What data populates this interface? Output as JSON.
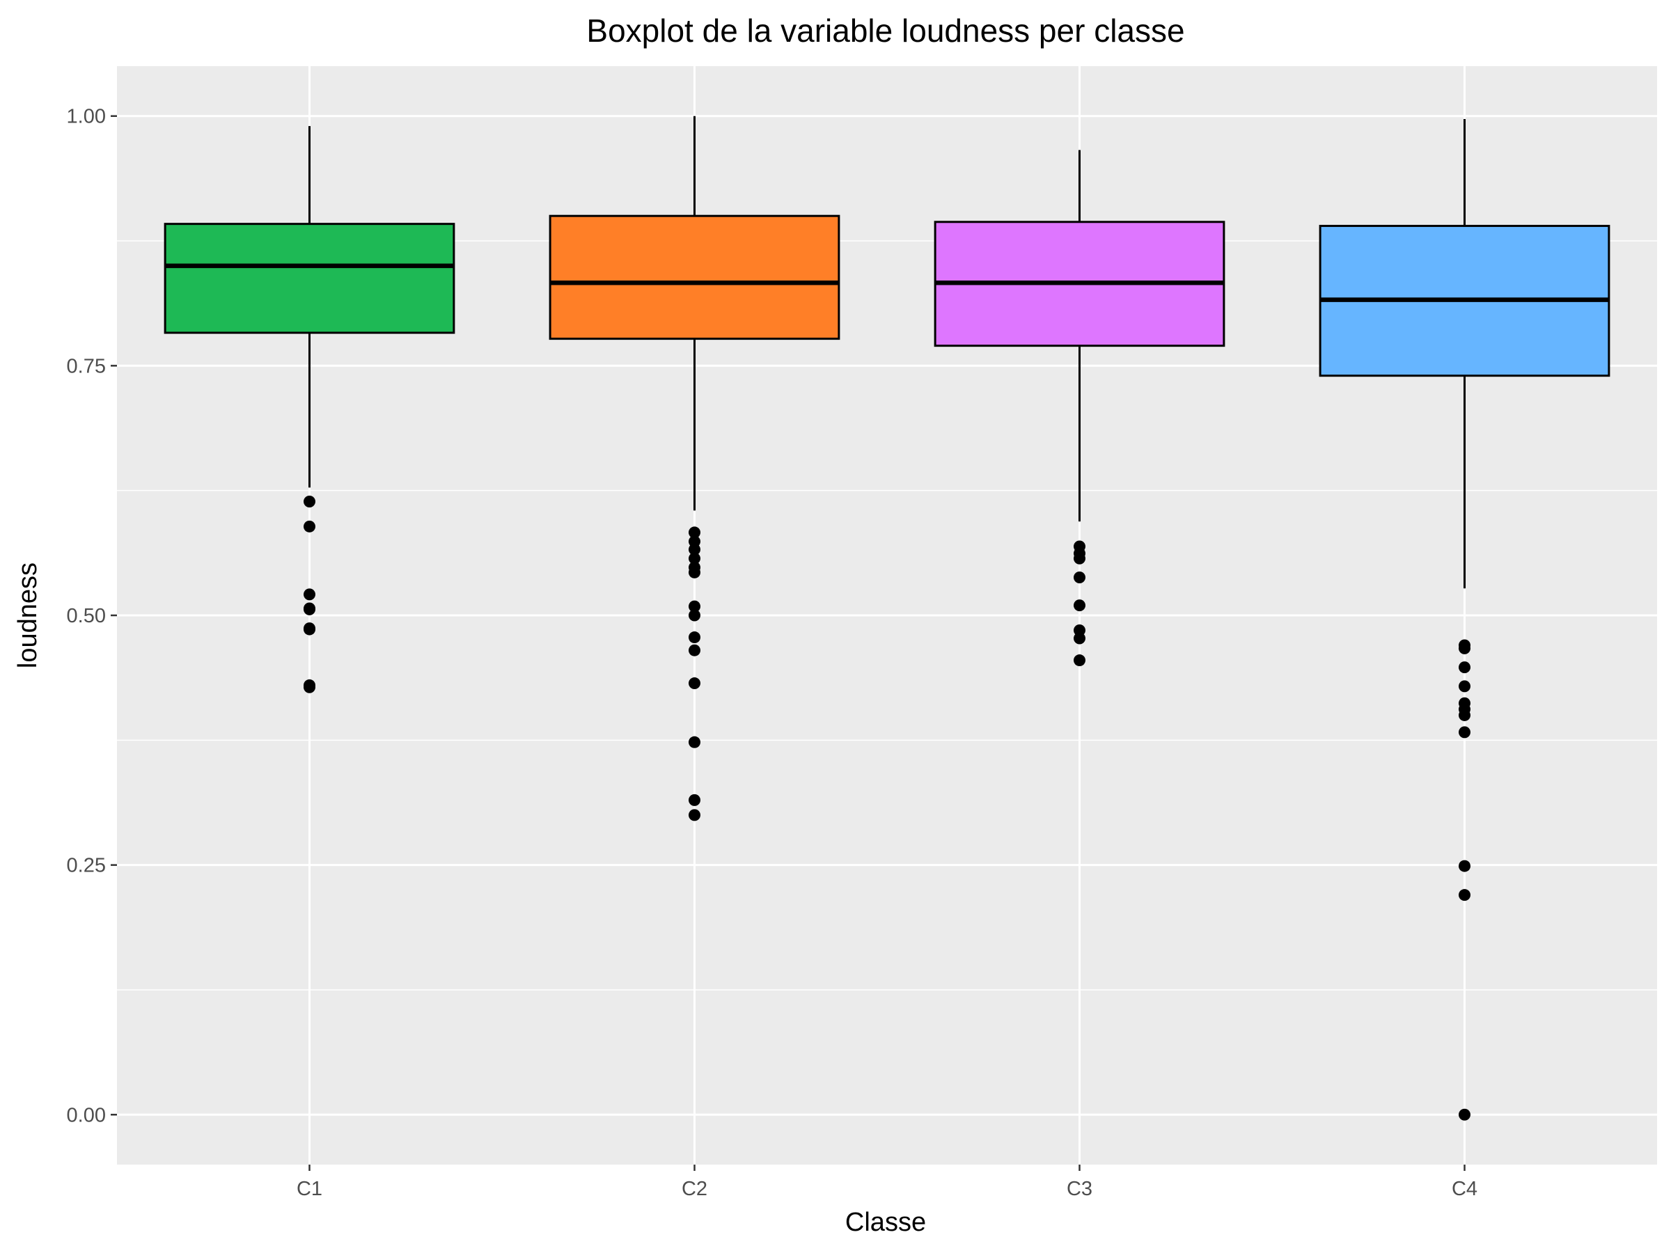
{
  "chart_data": {
    "type": "box",
    "title": "Boxplot de la variable loudness per classe",
    "xlabel": "Classe",
    "ylabel": "loudness",
    "ylim": [
      -0.05,
      1.05
    ],
    "y_ticks": [
      "0.00",
      "0.25",
      "0.50",
      "0.75",
      "1.00"
    ],
    "categories": [
      "C1",
      "C2",
      "C3",
      "C4"
    ],
    "colors": {
      "C1": "#1EB955",
      "C2": "#FF7F27",
      "C3": "#DE76FF",
      "C4": "#66B5FF"
    },
    "panel_background": "#EBEBEB",
    "grid": true,
    "boxes": [
      {
        "category": "C1",
        "whisker_low": 0.628,
        "q1": 0.783,
        "median": 0.85,
        "q3": 0.892,
        "whisker_high": 0.99,
        "outliers": [
          0.614,
          0.589,
          0.521,
          0.507,
          0.506,
          0.487,
          0.486,
          0.43,
          0.428
        ]
      },
      {
        "category": "C2",
        "whisker_low": 0.605,
        "q1": 0.777,
        "median": 0.833,
        "q3": 0.9,
        "whisker_high": 1.0,
        "outliers": [
          0.583,
          0.574,
          0.566,
          0.557,
          0.548,
          0.543,
          0.509,
          0.5,
          0.478,
          0.465,
          0.432,
          0.373,
          0.315,
          0.3
        ]
      },
      {
        "category": "C3",
        "whisker_low": 0.594,
        "q1": 0.77,
        "median": 0.833,
        "q3": 0.894,
        "whisker_high": 0.966,
        "outliers": [
          0.569,
          0.562,
          0.557,
          0.538,
          0.51,
          0.485,
          0.477,
          0.455
        ]
      },
      {
        "category": "C4",
        "whisker_low": 0.527,
        "q1": 0.74,
        "median": 0.816,
        "q3": 0.89,
        "whisker_high": 0.997,
        "outliers": [
          0.47,
          0.467,
          0.448,
          0.429,
          0.412,
          0.406,
          0.4,
          0.383,
          0.249,
          0.22,
          0.0
        ]
      }
    ]
  }
}
